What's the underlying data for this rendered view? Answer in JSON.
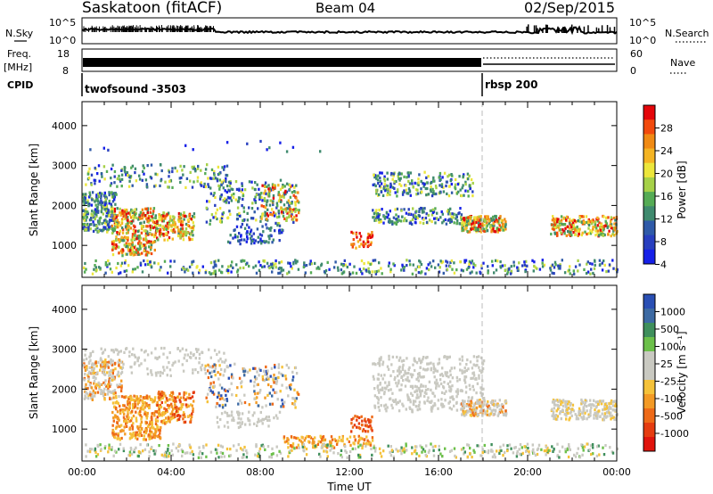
{
  "header": {
    "station": "Saskatoon (fitACF)",
    "beam": "Beam 04",
    "date": "02/Sep/2015"
  },
  "chart_data": [
    {
      "type": "line",
      "name": "noise",
      "left_label": "N.Sky",
      "right_label": "N.Search",
      "left_ticks": [
        "10^5",
        "10^0"
      ],
      "right_ticks": [
        "10^5",
        "10^0"
      ]
    },
    {
      "type": "line",
      "name": "frequency-nave",
      "left_label_line1": "Freq.",
      "left_label_line2": "[MHz]",
      "right_label": "Nave",
      "left_ticks": [
        18,
        8
      ],
      "right_ticks": [
        60,
        0
      ]
    },
    {
      "type": "table",
      "name": "cpid",
      "label": "CPID",
      "segments": [
        {
          "text": "twofsound -3503",
          "start_hour": 0
        },
        {
          "text": "rbsp 200",
          "start_hour": 18
        }
      ]
    },
    {
      "type": "heatmap",
      "name": "power",
      "ylabel": "Slant Range [km]",
      "xlim": [
        0,
        24
      ],
      "ylim": [
        200,
        4600
      ],
      "yticks": [
        1000,
        2000,
        3000,
        4000
      ],
      "colorbar": {
        "label": "Power [dB]",
        "ticks": [
          "28",
          "24",
          "20",
          "16",
          "12",
          "8",
          "4"
        ],
        "colors": [
          "#e4060a",
          "#f24a0d",
          "#f08a14",
          "#f4b423",
          "#ece63c",
          "#a6d148",
          "#55ab55",
          "#3f8a6e",
          "#2f5aa8",
          "#283fbf",
          "#1620e8"
        ]
      }
    },
    {
      "type": "heatmap",
      "name": "velocity",
      "ylabel": "Slant Range [km]",
      "xlabel": "Time UT",
      "xlim": [
        0,
        24
      ],
      "ylim": [
        200,
        4600
      ],
      "yticks": [
        1000,
        2000,
        3000,
        4000
      ],
      "xticks": [
        "00:00",
        "04:00",
        "08:00",
        "12:00",
        "16:00",
        "20:00",
        "00:00"
      ],
      "colorbar": {
        "label": "Velocity [m s⁻¹]",
        "ticks": [
          "1000",
          "500",
          "100",
          "25",
          "-25",
          "-100",
          "-500",
          "-1000"
        ],
        "colors": [
          "#2a4fb4",
          "#3d6aa3",
          "#3f8f5c",
          "#6cc04a",
          "#c9c9c1",
          "#c9c9c1",
          "#f5c23a",
          "#f39a25",
          "#ee6a18",
          "#e53c10",
          "#e0140c"
        ]
      }
    }
  ]
}
